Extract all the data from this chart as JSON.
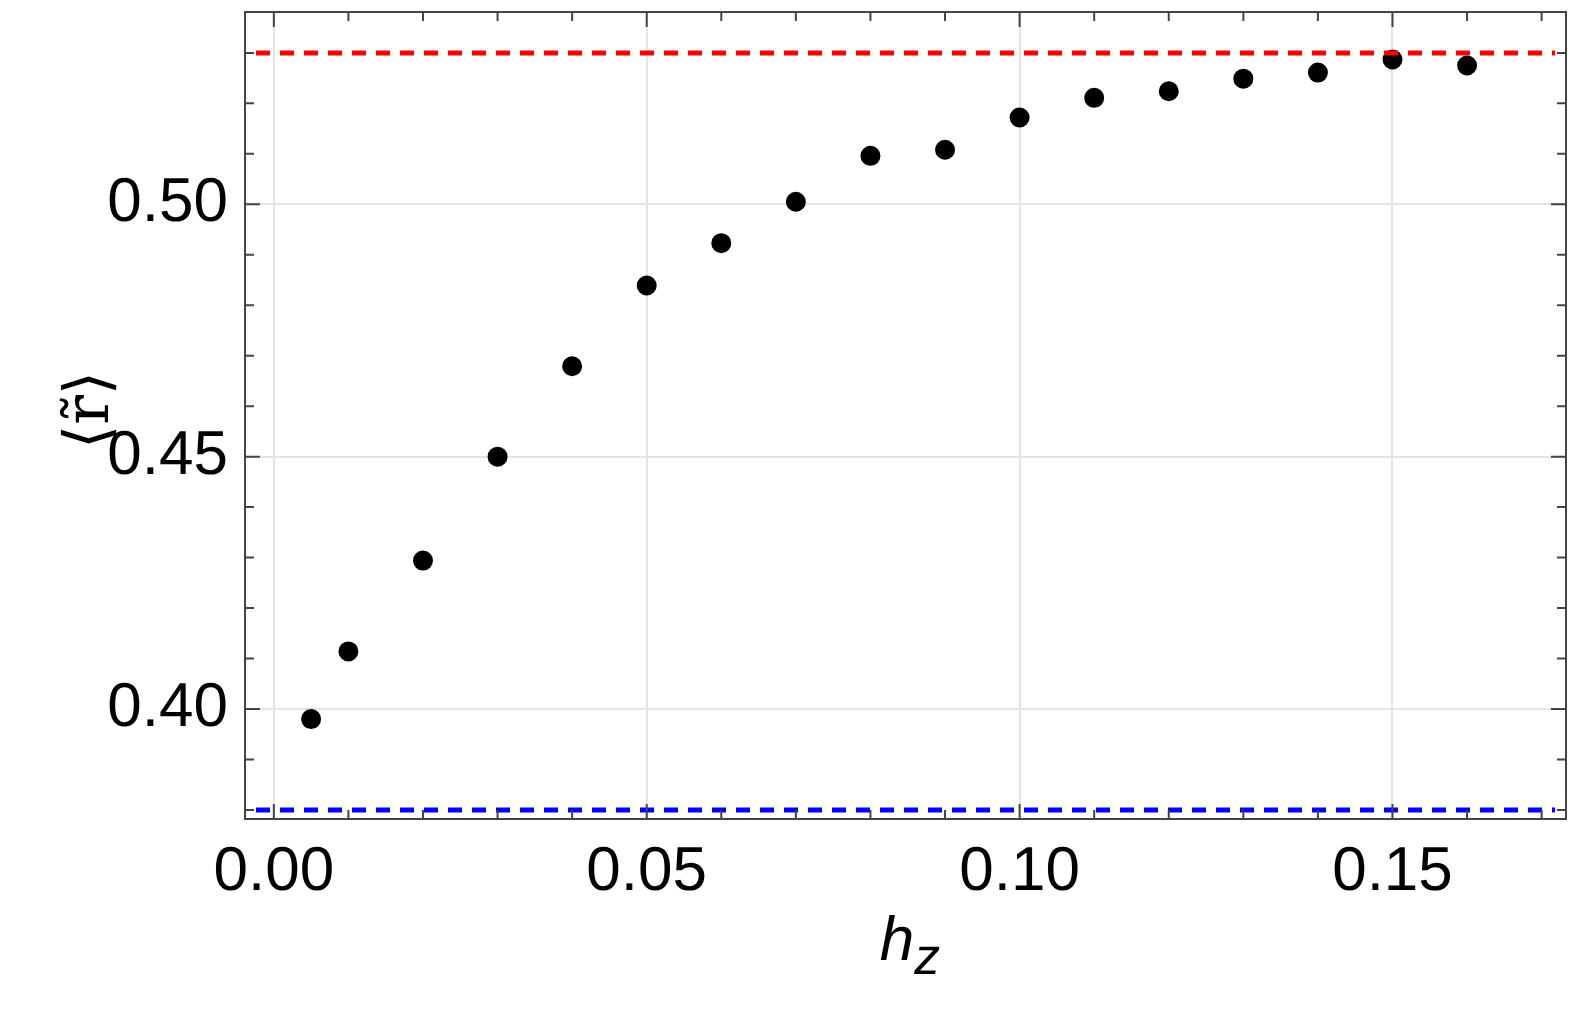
{
  "chart_data": {
    "type": "scatter",
    "xlabel": "h$_{z}$",
    "ylabel": "⟨r̃⟩",
    "x": [
      0.005,
      0.01,
      0.02,
      0.03,
      0.04,
      0.05,
      0.06,
      0.07,
      0.08,
      0.09,
      0.1,
      0.11,
      0.12,
      0.13,
      0.14,
      0.15,
      0.16
    ],
    "series": [
      {
        "color": "#000000",
        "values": [
          0.398,
          0.4114,
          0.4294,
          0.45,
          0.4679,
          0.4839,
          0.4923,
          0.5005,
          0.5096,
          0.5108,
          0.5172,
          0.5211,
          0.5224,
          0.5249,
          0.5261,
          0.5287,
          0.5275
        ]
      }
    ],
    "xlim": [
      -0.004,
      0.1734
    ],
    "xticks": [
      {
        "value": 0,
        "label": "0.00"
      },
      {
        "value": 0.05,
        "label": "0.05"
      },
      {
        "value": 0.1,
        "label": "0.10"
      },
      {
        "value": 0.15,
        "label": "0.15"
      }
    ],
    "ylim": [
      0.378,
      0.5383
    ],
    "yticks": [
      {
        "value": 0.4,
        "label": "0.40"
      },
      {
        "value": 0.45,
        "label": "0.45"
      },
      {
        "value": 0.5,
        "label": "0.50"
      }
    ],
    "ref_lines": [
      {
        "axis": "y",
        "value": 0.53,
        "color": "#ff0000",
        "line_style": "dashed"
      },
      {
        "axis": "y",
        "value": 0.38,
        "color": "#0000ff",
        "line_style": "dashed"
      }
    ],
    "grid": true,
    "marker": "circle"
  }
}
